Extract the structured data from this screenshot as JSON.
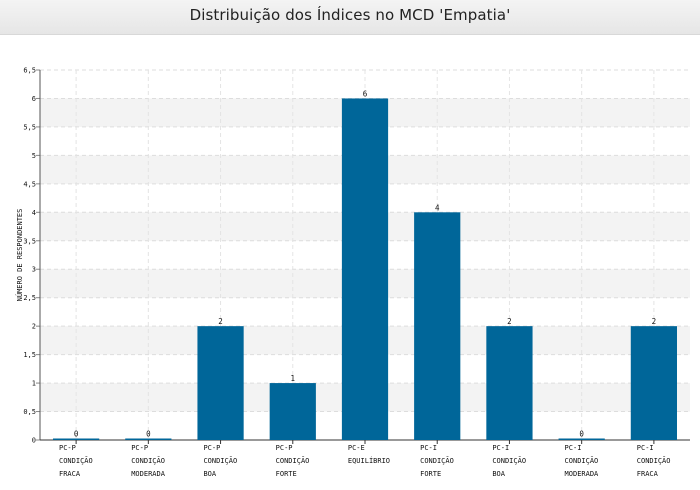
{
  "chart_data": {
    "type": "bar",
    "title": "Distribuição dos Índices no MCD 'Empatia'",
    "xlabel": "",
    "ylabel": "NÚMERO DE RESPONDENTES",
    "ylim": [
      0,
      6.5
    ],
    "yticks": [
      "0",
      "0,5",
      "1",
      "1,5",
      "2",
      "2,5",
      "3",
      "3,5",
      "4",
      "4,5",
      "5",
      "5,5",
      "6",
      "6,5"
    ],
    "grid": true,
    "categories": [
      [
        "PC-P",
        "CONDIÇÃO",
        "FRACA"
      ],
      [
        "PC-P",
        "CONDIÇÃO",
        "MODERADA"
      ],
      [
        "PC-P",
        "CONDIÇÃO",
        "BOA"
      ],
      [
        "PC-P",
        "CONDIÇÃO",
        "FORTE"
      ],
      [
        "PC-E",
        "EQUILÍBRIO"
      ],
      [
        "PC-I",
        "CONDIÇÃO",
        "FORTE"
      ],
      [
        "PC-I",
        "CONDIÇÃO",
        "BOA"
      ],
      [
        "PC-I",
        "CONDIÇÃO",
        "MODERADA"
      ],
      [
        "PC-I",
        "CONDIÇÃO",
        "FRACA"
      ]
    ],
    "values": [
      0,
      0,
      2,
      1,
      6,
      4,
      2,
      0,
      2
    ],
    "data_labels": [
      "0",
      "0",
      "2",
      "1",
      "6",
      "4",
      "2",
      "0",
      "2"
    ],
    "bar_color": "#006699"
  }
}
